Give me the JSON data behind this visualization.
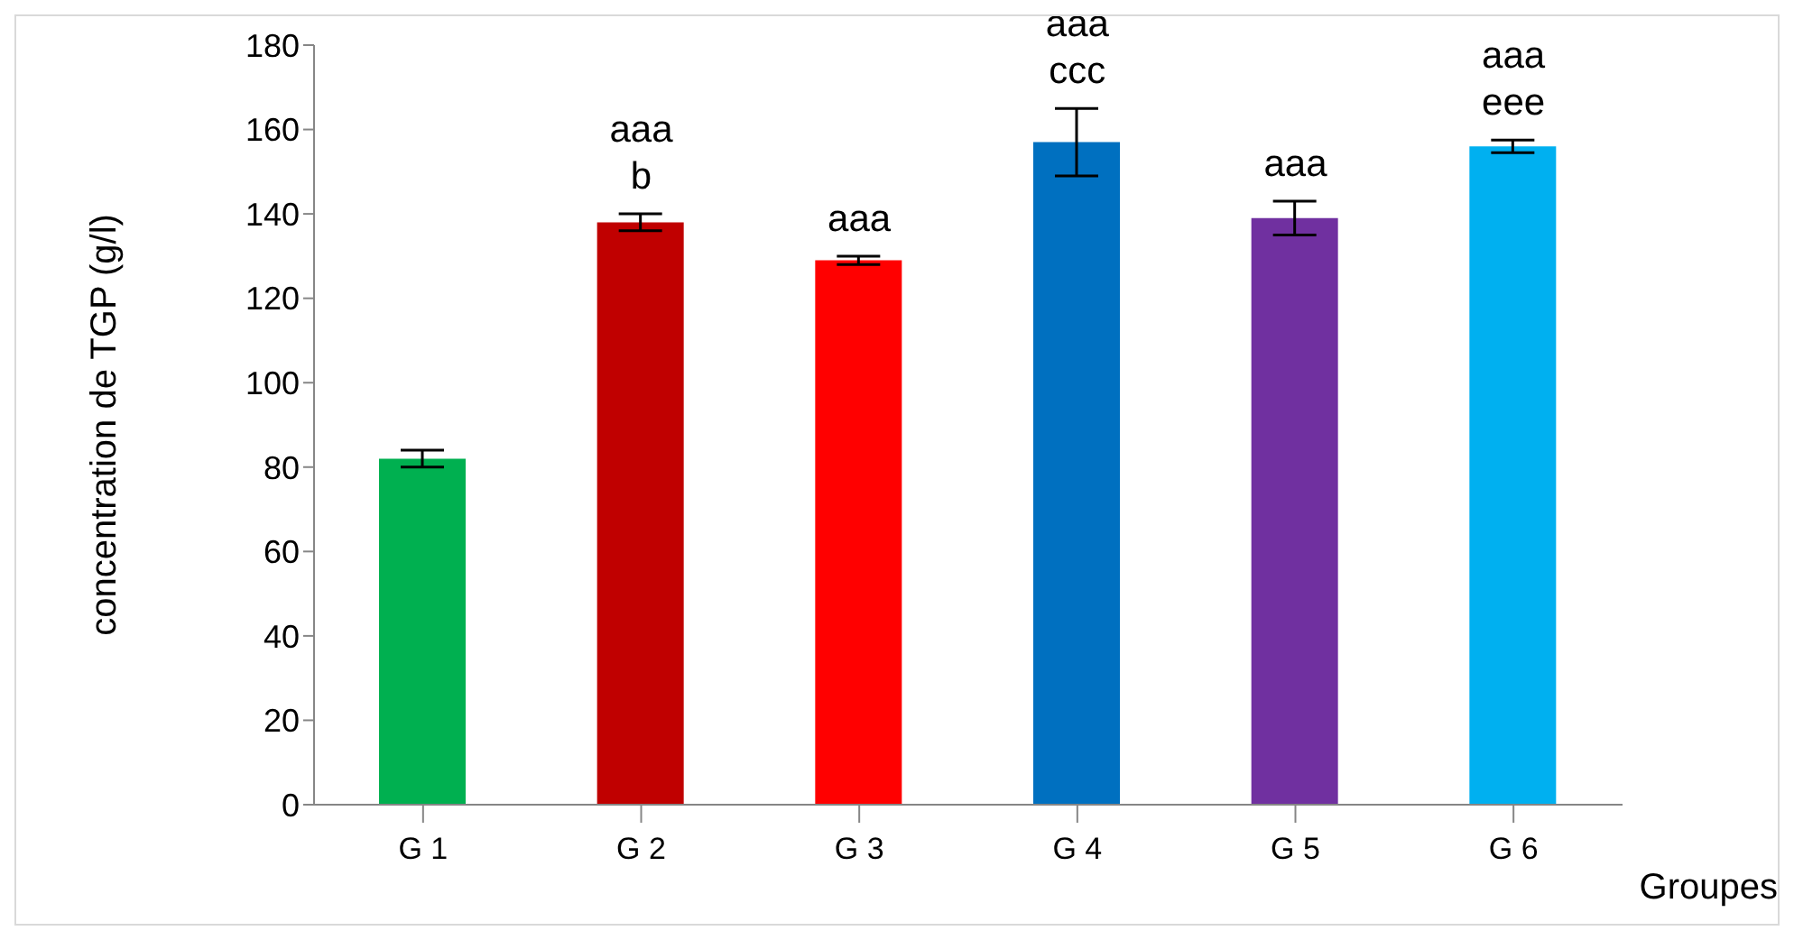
{
  "chart_data": {
    "type": "bar",
    "xlabel": "Groupes",
    "ylabel": "concentration de TGP (g/l)",
    "categories": [
      "G 1",
      "G 2",
      "G 3",
      "G 4",
      "G 5",
      "G 6"
    ],
    "values": [
      82,
      138,
      129,
      157,
      139,
      156
    ],
    "colors": [
      "#00b050",
      "#c00000",
      "#ff0000",
      "#0070c0",
      "#7030a0",
      "#00b0f0"
    ],
    "errors": [
      2,
      2,
      1,
      8,
      4,
      1.5
    ],
    "ylim": [
      0,
      180
    ],
    "yticks": [
      0,
      20,
      40,
      60,
      80,
      100,
      120,
      140,
      160,
      180
    ],
    "grid": false,
    "legend": false,
    "annotations": [
      "aaa",
      "b",
      "aaa",
      "aaa",
      "ccc",
      "aaa",
      "aaa",
      "eee"
    ]
  }
}
